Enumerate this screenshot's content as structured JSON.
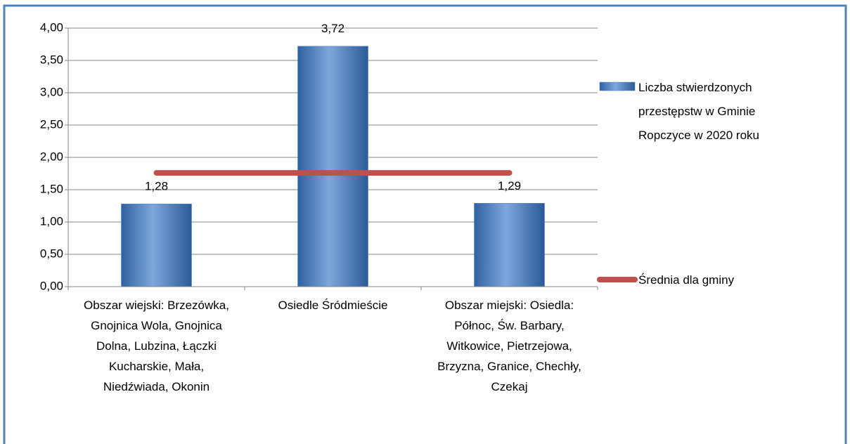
{
  "chart_data": {
    "type": "bar",
    "categories": [
      "Obszar wiejski: Brzezówka, Gnojnica Wola, Gnojnica Dolna, Lubzina, Łączki Kucharskie, Mała, Niedźwiada, Okonin",
      "Osiedle Śródmieście",
      "Obszar miejski: Osiedla: Północ, Św. Barbary, Witkowice, Pietrzejowa, Brzyzna, Granice, Chechły, Czekaj"
    ],
    "series": [
      {
        "name": "Liczba stwierdzonych przestępstw w Gminie Ropczyce w 2020 roku",
        "type": "bar",
        "color": "#4f81bd",
        "values": [
          1.28,
          3.72,
          1.29
        ],
        "value_labels": [
          "1,28",
          "3,72",
          "1,29"
        ]
      },
      {
        "name": "Średnia dla gminy",
        "type": "line",
        "color": "#c0504d",
        "values": [
          1.76,
          1.76,
          1.76
        ]
      }
    ],
    "ylim": [
      0,
      4
    ],
    "yticks": [
      {
        "value": 0,
        "label": "0,00"
      },
      {
        "value": 0.5,
        "label": "0,50"
      },
      {
        "value": 1,
        "label": "1,00"
      },
      {
        "value": 1.5,
        "label": "1,50"
      },
      {
        "value": 2,
        "label": "2,00"
      },
      {
        "value": 2.5,
        "label": "2,50"
      },
      {
        "value": 3,
        "label": "3,00"
      },
      {
        "value": 3.5,
        "label": "3,50"
      },
      {
        "value": 4,
        "label": "4,00"
      }
    ],
    "grid": true,
    "legend": "right"
  }
}
